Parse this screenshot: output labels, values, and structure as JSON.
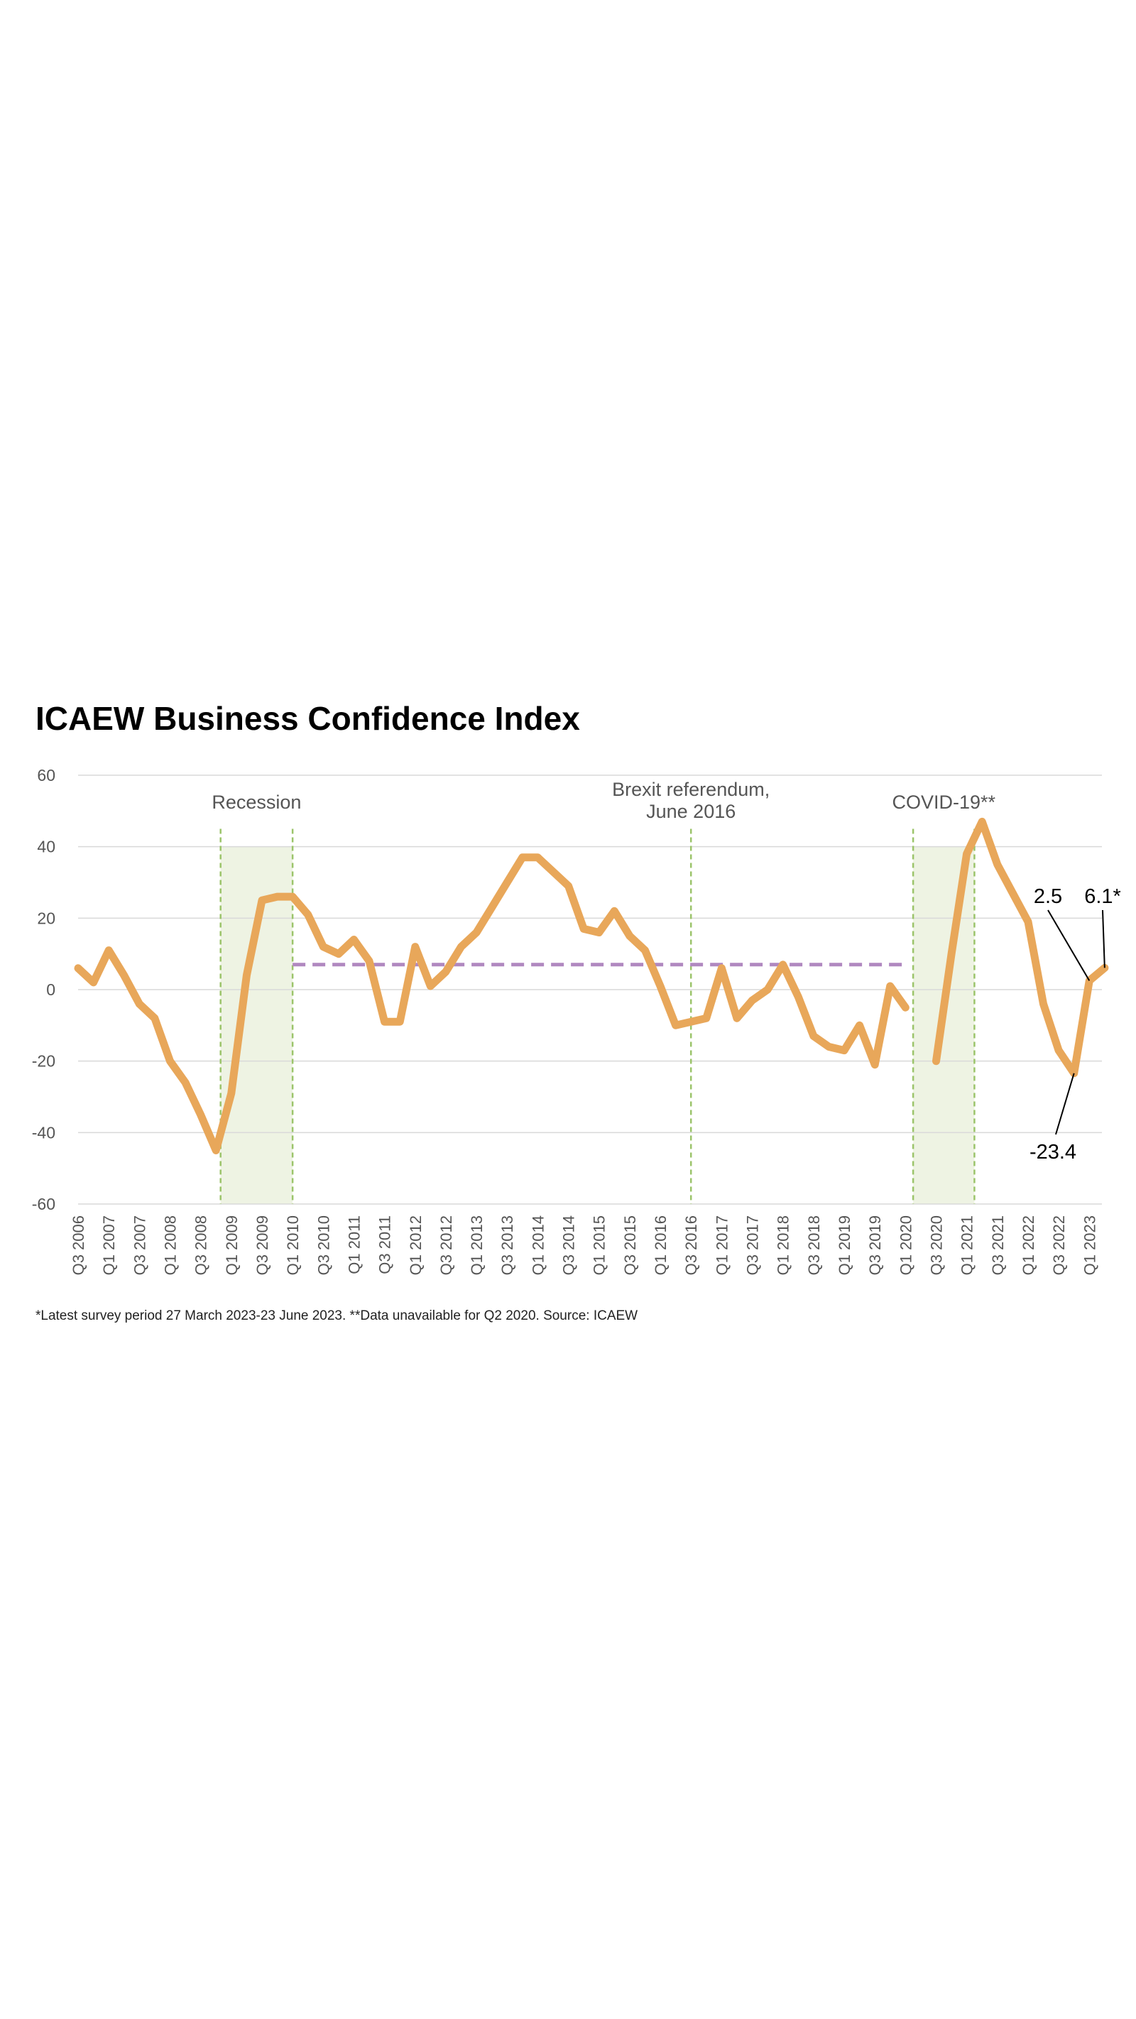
{
  "chart_data": {
    "type": "line",
    "title": "ICAEW Business Confidence Index",
    "footnote": "*Latest survey period 27 March 2023-23 June 2023. **Data unavailable for Q2 2020. Source: ICAEW",
    "ylim": [
      -60,
      60
    ],
    "yticks": [
      -60,
      -40,
      -20,
      0,
      20,
      40,
      60
    ],
    "grid": true,
    "x_tick_labels": [
      "Q3 2006",
      "Q1 2007",
      "Q3 2007",
      "Q1 2008",
      "Q3 2008",
      "Q1 2009",
      "Q3 2009",
      "Q1 2010",
      "Q3 2010",
      "Q1 2011",
      "Q3 2011",
      "Q1 2012",
      "Q3 2012",
      "Q1 2013",
      "Q3 2013",
      "Q1 2014",
      "Q3 2014",
      "Q1 2015",
      "Q3 2015",
      "Q1 2016",
      "Q3 2016",
      "Q1 2017",
      "Q3 2017",
      "Q1 2018",
      "Q3 2018",
      "Q1 2019",
      "Q3 2019",
      "Q1 2020",
      "Q3 2020",
      "Q1 2021",
      "Q3 2021",
      "Q1 2022",
      "Q3 2022",
      "Q1 2023"
    ],
    "series": [
      {
        "name": "Business Confidence Index",
        "color": "#E8A75A",
        "values": [
          6,
          2,
          11,
          4,
          -4,
          -8,
          -20,
          -26,
          -35,
          -45,
          -29,
          4,
          25,
          26,
          26,
          21,
          12,
          10,
          14,
          8,
          -9,
          -9,
          12,
          1,
          5,
          12,
          16,
          23,
          30,
          37,
          37,
          33,
          29,
          17,
          16,
          22,
          15,
          11,
          1,
          -10,
          -9,
          -8,
          6,
          -8,
          -3,
          0,
          7,
          -2,
          -13,
          -16,
          -17,
          -10,
          -21,
          1,
          -5,
          null,
          -20,
          10,
          38,
          47,
          35,
          27,
          19,
          -4,
          -17,
          -23.4,
          2.5,
          6.1
        ]
      }
    ],
    "reference_line": {
      "value": 7,
      "color": "#B088C0",
      "from_quarter_index": 14,
      "to_quarter_index": 54
    },
    "shaded_periods": [
      {
        "label": "Recession",
        "start_quarter_index": 9.3,
        "end_quarter_index": 14
      },
      {
        "label": "COVID-19**",
        "start_quarter_index": 54.5,
        "end_quarter_index": 58.5
      }
    ],
    "event_lines": [
      {
        "label_line1": "Brexit referendum,",
        "label_line2": "June 2016",
        "quarter_index": 40
      }
    ],
    "annotations": [
      {
        "text": "2.5",
        "quarter_index": 66,
        "value": 2.5
      },
      {
        "text": "6.1*",
        "quarter_index": 67,
        "value": 6.1
      },
      {
        "text": "-23.4",
        "quarter_index": 65,
        "value": -23.4
      }
    ],
    "colors": {
      "shading": "#EEF3E3",
      "event_line": "#9BC46A",
      "grid": "#D9D9D9",
      "axis_text": "#555555"
    }
  }
}
